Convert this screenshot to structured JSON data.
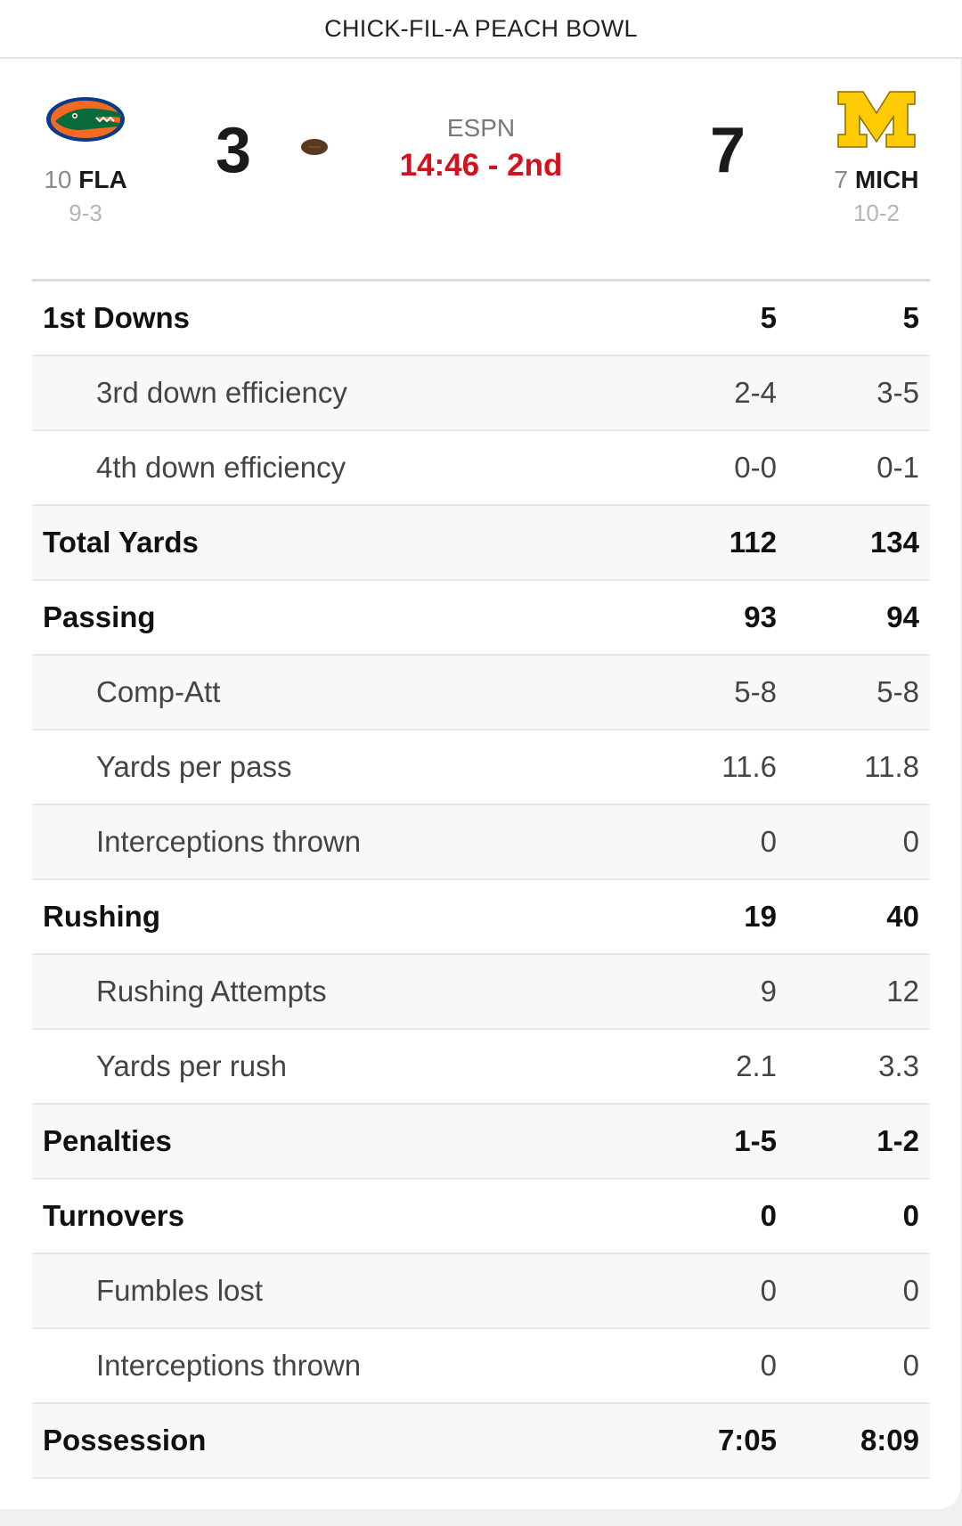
{
  "header": {
    "title": "CHICK-FIL-A PEACH BOWL"
  },
  "game": {
    "network": "ESPN",
    "clock": "14:46 - 2nd",
    "possession": "away",
    "colors": {
      "clock": "#d3121e",
      "ball": "#5a3a1f"
    }
  },
  "away": {
    "rank": "10",
    "abbr": "FLA",
    "record": "9-3",
    "score": "3",
    "logo_icon": "gator-logo-icon",
    "colors": {
      "primary": "#f26a21",
      "secondary": "#0a3a8a"
    }
  },
  "home": {
    "rank": "7",
    "abbr": "MICH",
    "record": "10-2",
    "score": "7",
    "logo_icon": "block-m-logo-icon",
    "colors": {
      "primary": "#ffcb05",
      "secondary": "#8a6d00"
    }
  },
  "stats": [
    {
      "label": "1st Downs",
      "away": "5",
      "home": "5",
      "type": "main"
    },
    {
      "label": "3rd down efficiency",
      "away": "2-4",
      "home": "3-5",
      "type": "sub"
    },
    {
      "label": "4th down efficiency",
      "away": "0-0",
      "home": "0-1",
      "type": "sub"
    },
    {
      "label": "Total Yards",
      "away": "112",
      "home": "134",
      "type": "main"
    },
    {
      "label": "Passing",
      "away": "93",
      "home": "94",
      "type": "main"
    },
    {
      "label": "Comp-Att",
      "away": "5-8",
      "home": "5-8",
      "type": "sub"
    },
    {
      "label": "Yards per pass",
      "away": "11.6",
      "home": "11.8",
      "type": "sub"
    },
    {
      "label": "Interceptions thrown",
      "away": "0",
      "home": "0",
      "type": "sub"
    },
    {
      "label": "Rushing",
      "away": "19",
      "home": "40",
      "type": "main"
    },
    {
      "label": "Rushing Attempts",
      "away": "9",
      "home": "12",
      "type": "sub"
    },
    {
      "label": "Yards per rush",
      "away": "2.1",
      "home": "3.3",
      "type": "sub"
    },
    {
      "label": "Penalties",
      "away": "1-5",
      "home": "1-2",
      "type": "main"
    },
    {
      "label": "Turnovers",
      "away": "0",
      "home": "0",
      "type": "main"
    },
    {
      "label": "Fumbles lost",
      "away": "0",
      "home": "0",
      "type": "sub"
    },
    {
      "label": "Interceptions thrown",
      "away": "0",
      "home": "0",
      "type": "sub"
    },
    {
      "label": "Possession",
      "away": "7:05",
      "home": "8:09",
      "type": "main"
    }
  ]
}
